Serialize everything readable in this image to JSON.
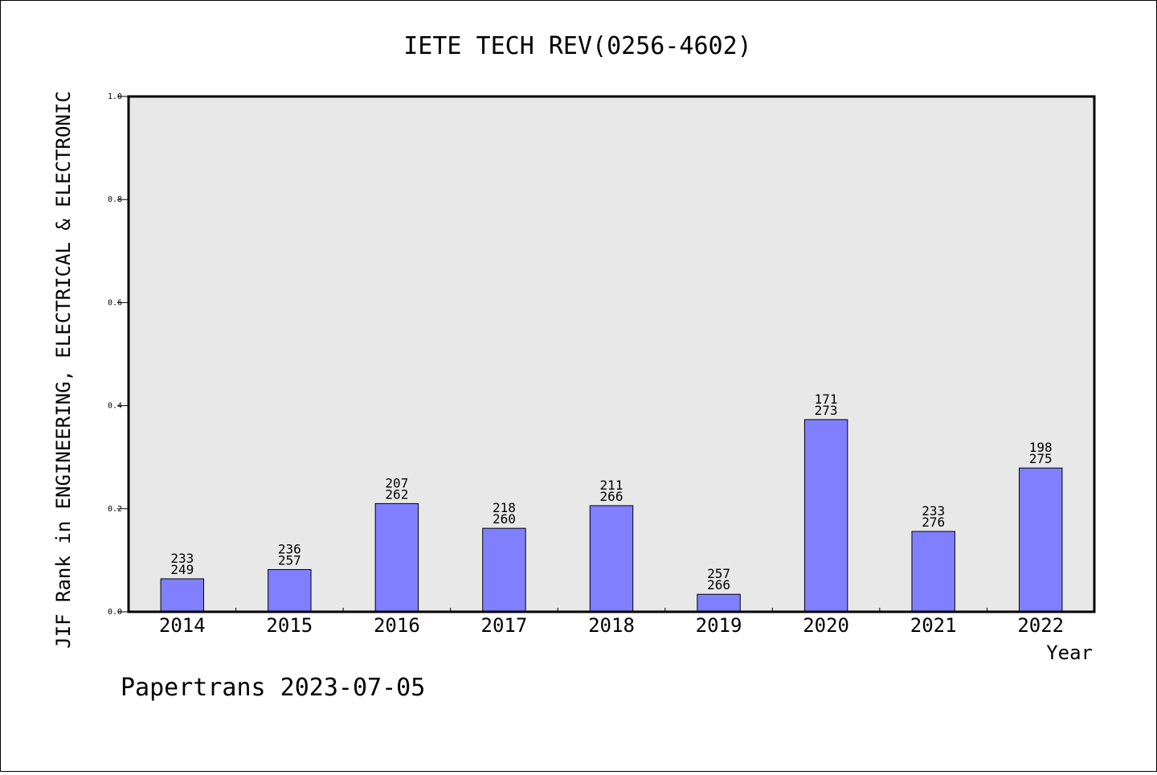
{
  "chart_data": {
    "type": "bar",
    "title": "IETE TECH REV(0256-4602)",
    "xlabel": "Year",
    "ylabel": "JIF Rank in ENGINEERING, ELECTRICAL & ELECTRONIC",
    "ylim": [
      0,
      1.0
    ],
    "yticks": [
      "0.0",
      "0.2",
      "0.4",
      "0.6",
      "0.8",
      "1.0"
    ],
    "categories": [
      "2014",
      "2015",
      "2016",
      "2017",
      "2018",
      "2019",
      "2020",
      "2021",
      "2022"
    ],
    "values": [
      0.064,
      0.082,
      0.21,
      0.162,
      0.206,
      0.034,
      0.373,
      0.156,
      0.279
    ],
    "labels_top": [
      "233",
      "236",
      "207",
      "218",
      "211",
      "257",
      "171",
      "233",
      "198"
    ],
    "labels_bottom": [
      "249",
      "257",
      "262",
      "260",
      "266",
      "266",
      "273",
      "276",
      "275"
    ],
    "grid": false,
    "colors": {
      "bar": "#8080ff",
      "plot_bg": "#e8e8e8",
      "axis": "#000000"
    }
  },
  "footer": "Papertrans 2023-07-05"
}
